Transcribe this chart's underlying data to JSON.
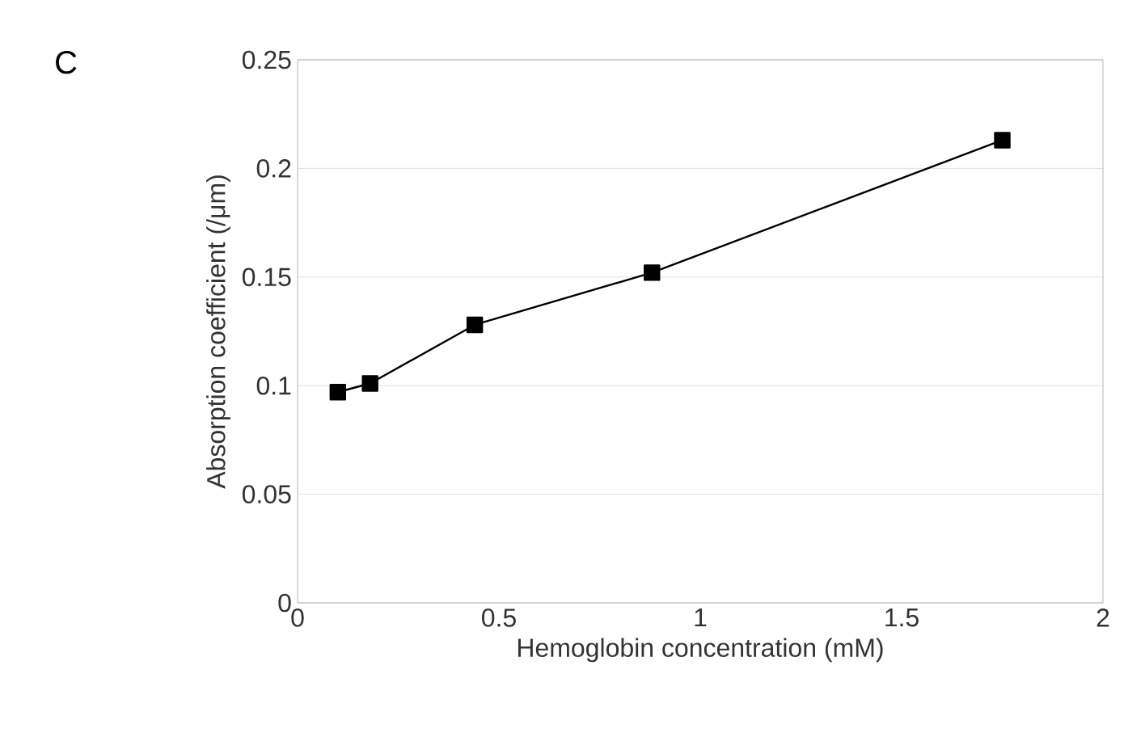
{
  "chart_data": {
    "type": "line",
    "title": "C",
    "xlabel": "Hemoglobin concentration (mM)",
    "ylabel": "Absorption coefficient (/μm)",
    "x": [
      0.1,
      0.18,
      0.44,
      0.88,
      1.75
    ],
    "series": [
      {
        "color": "#000000",
        "values": [
          0.097,
          0.101,
          0.128,
          0.152,
          0.213
        ]
      }
    ],
    "xlim": [
      0,
      2
    ],
    "xticks": [
      0,
      0.5,
      1,
      1.5,
      2
    ],
    "ylim": [
      0,
      0.25
    ],
    "yticks": [
      0,
      0.05,
      0.1,
      0.15,
      0.2,
      0.25
    ],
    "grid": "y",
    "marker": "square",
    "line_style": "solid"
  }
}
